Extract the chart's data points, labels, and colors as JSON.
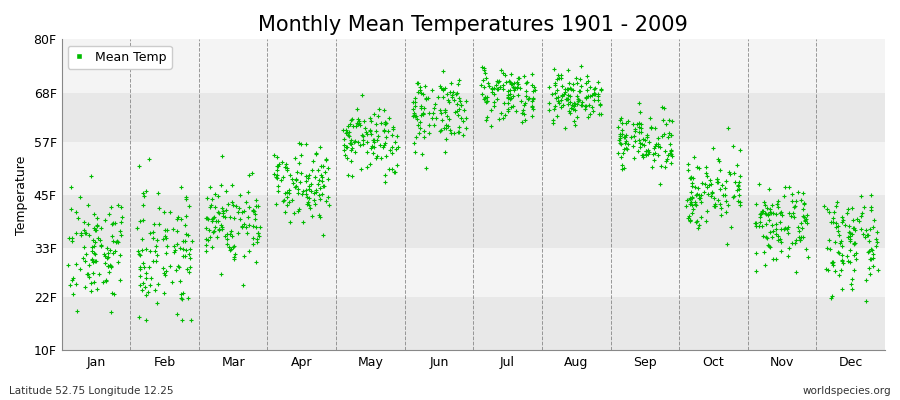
{
  "title": "Monthly Mean Temperatures 1901 - 2009",
  "ylabel": "Temperature",
  "bottom_left_text": "Latitude 52.75 Longitude 12.25",
  "bottom_right_text": "worldspecies.org",
  "legend_label": "Mean Temp",
  "ytick_labels": [
    "10F",
    "22F",
    "33F",
    "45F",
    "57F",
    "68F",
    "80F"
  ],
  "ytick_values": [
    10,
    22,
    33,
    45,
    57,
    68,
    80
  ],
  "ylim": [
    10,
    80
  ],
  "months": [
    "Jan",
    "Feb",
    "Mar",
    "Apr",
    "May",
    "Jun",
    "Jul",
    "Aug",
    "Sep",
    "Oct",
    "Nov",
    "Dec"
  ],
  "dot_color": "#00bb00",
  "background_color": "#ffffff",
  "band_color_dark": "#e8e8e8",
  "band_color_light": "#f4f4f4",
  "n_years": 109,
  "monthly_means_F": [
    33,
    33,
    39,
    48,
    57,
    64,
    68,
    67,
    57,
    46,
    38,
    34
  ],
  "monthly_stds_F": [
    6,
    7,
    5,
    4,
    4,
    4,
    3,
    3,
    3,
    4,
    4,
    5
  ],
  "title_fontsize": 15,
  "axis_fontsize": 9,
  "tick_fontsize": 9,
  "dot_size": 5,
  "dot_marker": "+"
}
